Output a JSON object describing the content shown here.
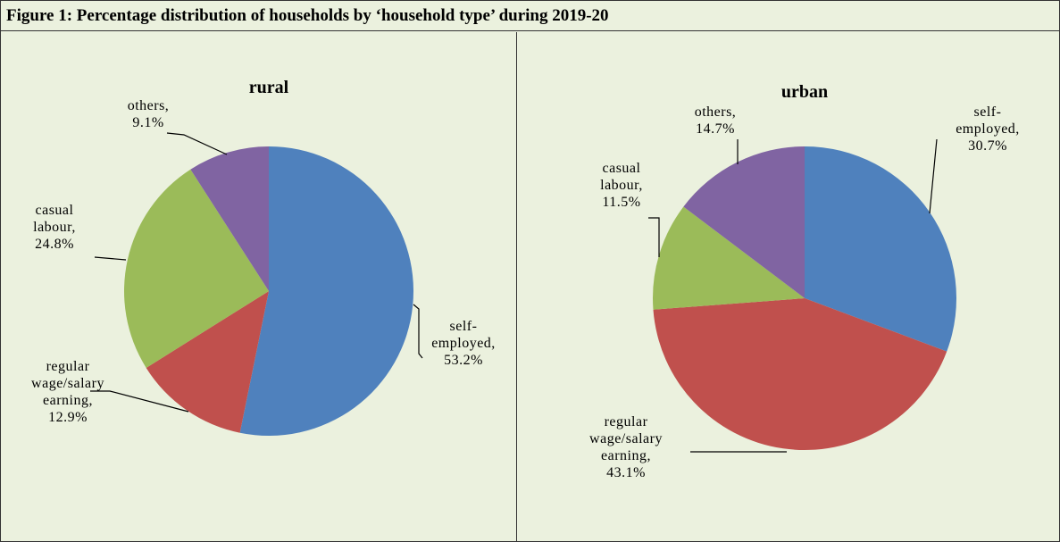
{
  "header": {
    "title": "Figure 1: Percentage distribution of households by ‘household type’ during 2019-20"
  },
  "chart_data": [
    {
      "type": "pie",
      "title": "rural",
      "categories": [
        "self-employed",
        "regular wage/salary earning",
        "casual labour",
        "others"
      ],
      "values": [
        53.2,
        12.9,
        24.8,
        9.1
      ],
      "value_labels": [
        "53.2%",
        "12.9%",
        "24.8%",
        "9.1%"
      ],
      "colors": [
        "#4f81bd",
        "#c0504d",
        "#9bbb59",
        "#8064a2"
      ]
    },
    {
      "type": "pie",
      "title": "urban",
      "categories": [
        "self-employed",
        "regular wage/salary earning",
        "casual labour",
        "others"
      ],
      "values": [
        30.7,
        43.1,
        11.5,
        14.7
      ],
      "value_labels": [
        "30.7%",
        "43.1%",
        "11.5%",
        "14.7%"
      ],
      "colors": [
        "#4f81bd",
        "#c0504d",
        "#9bbb59",
        "#8064a2"
      ]
    }
  ]
}
